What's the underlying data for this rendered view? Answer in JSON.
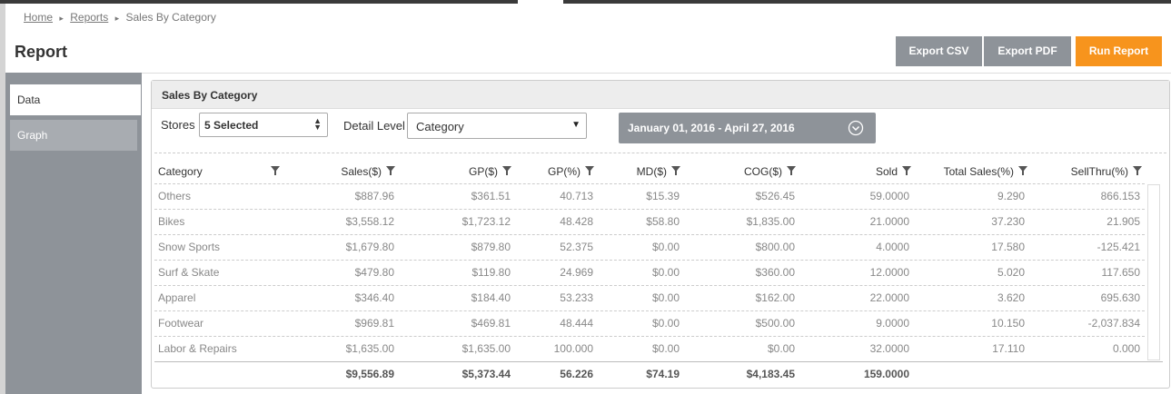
{
  "breadcrumb": [
    "Home",
    "Reports",
    "Sales By Category"
  ],
  "title": "Report",
  "buttons": [
    "Export CSV",
    "Export PDF",
    "Run Report"
  ],
  "tabs": [
    "Data",
    "Graph"
  ],
  "panel": {
    "title": "Sales By Category",
    "stores_label": "Stores",
    "stores_value": "5 Selected",
    "detail_label": "Detail Level",
    "detail_value": "Category",
    "date_range": "January 01, 2016 - April 27, 2016"
  },
  "table": {
    "columns": [
      "Category",
      "Sales($)",
      "GP($)",
      "GP(%)",
      "MD($)",
      "COG($)",
      "Sold",
      "Total Sales(%)",
      "SellThru(%)"
    ],
    "rows": [
      [
        "Others",
        "$887.96",
        "$361.51",
        "40.713",
        "$15.39",
        "$526.45",
        "59.0000",
        "9.290",
        "866.153"
      ],
      [
        "Bikes",
        "$3,558.12",
        "$1,723.12",
        "48.428",
        "$58.80",
        "$1,835.00",
        "21.0000",
        "37.230",
        "21.905"
      ],
      [
        "Snow Sports",
        "$1,679.80",
        "$879.80",
        "52.375",
        "$0.00",
        "$800.00",
        "4.0000",
        "17.580",
        "-125.421"
      ],
      [
        "Surf & Skate",
        "$479.80",
        "$119.80",
        "24.969",
        "$0.00",
        "$360.00",
        "12.0000",
        "5.020",
        "117.650"
      ],
      [
        "Apparel",
        "$346.40",
        "$184.40",
        "53.233",
        "$0.00",
        "$162.00",
        "22.0000",
        "3.620",
        "695.630"
      ],
      [
        "Footwear",
        "$969.81",
        "$469.81",
        "48.444",
        "$0.00",
        "$500.00",
        "9.0000",
        "10.150",
        "-2,037.834"
      ],
      [
        "Labor & Repairs",
        "$1,635.00",
        "$1,635.00",
        "100.000",
        "$0.00",
        "$0.00",
        "32.0000",
        "17.110",
        "0.000"
      ]
    ],
    "totals": [
      "$9,556.89",
      "$5,373.44",
      "56.226",
      "$74.19",
      "$4,183.45",
      "159.0000"
    ]
  }
}
